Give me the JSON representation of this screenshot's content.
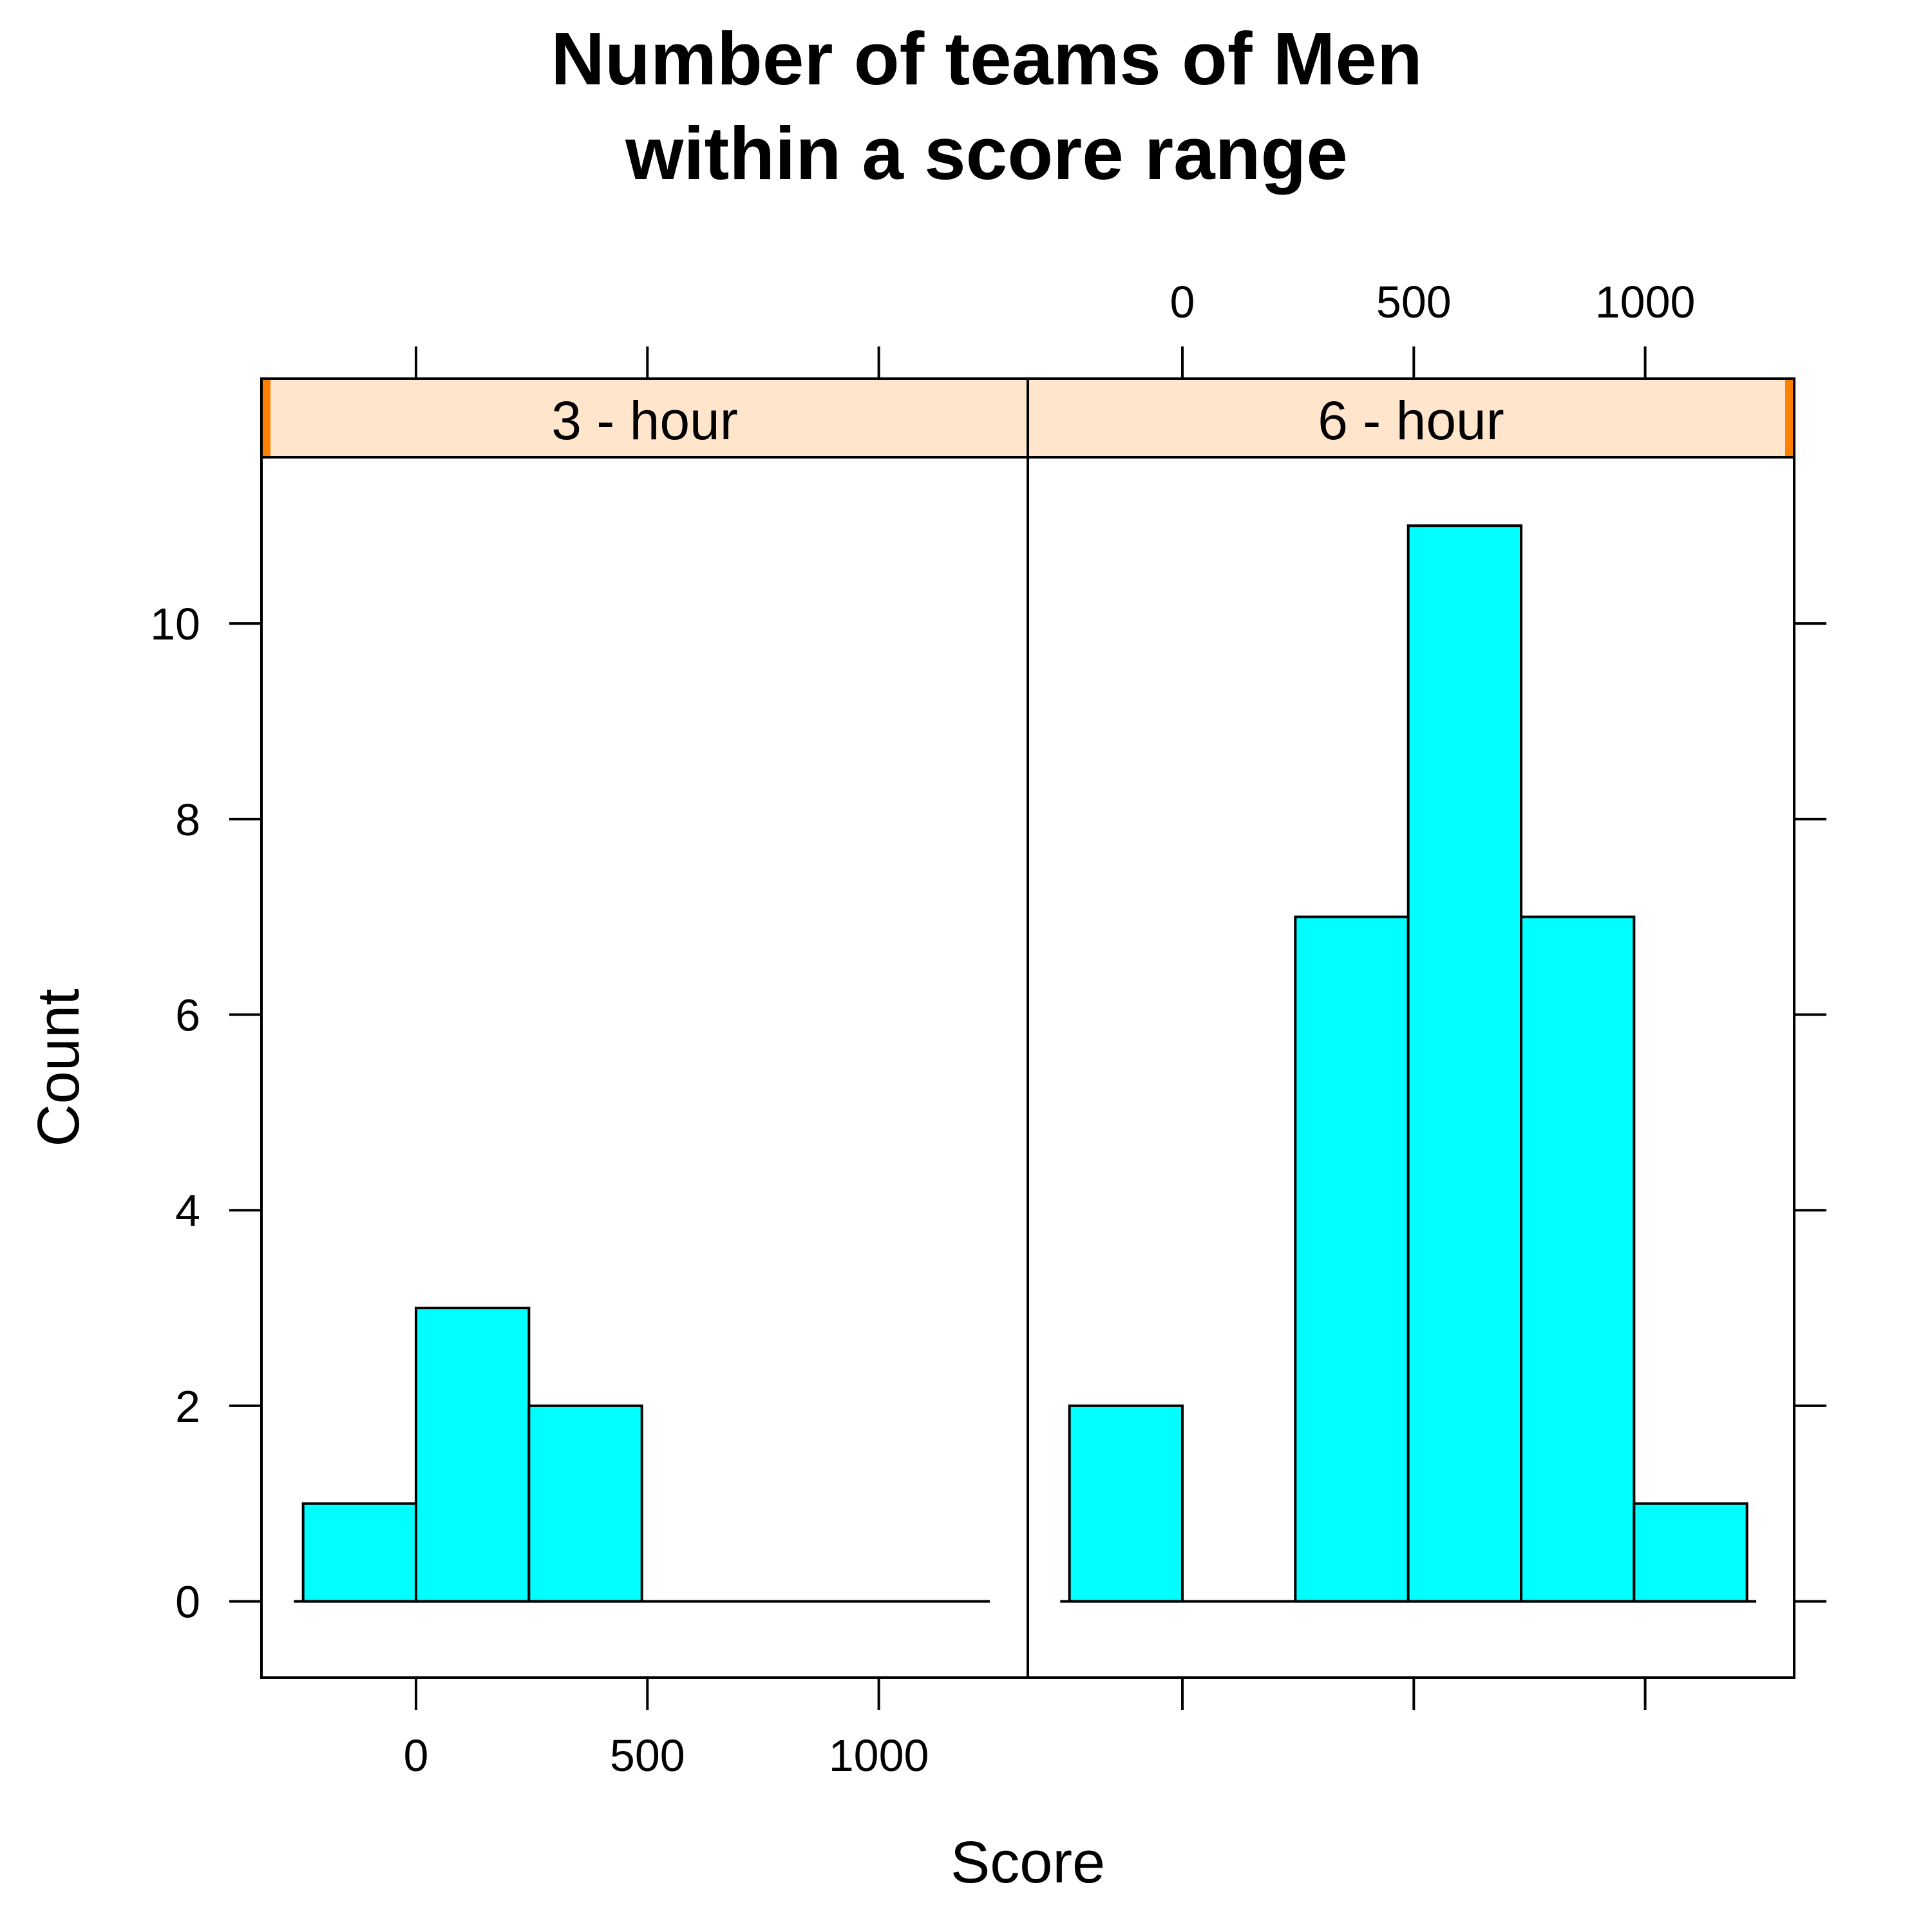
{
  "chart_data": {
    "type": "bar",
    "title": [
      "Number of teams of Men",
      "within a score range"
    ],
    "xlabel": "Score",
    "ylabel": "Count",
    "xlim": [
      -334,
      1322
    ],
    "ylim": [
      -0.78,
      11.7
    ],
    "xticks": [
      0,
      500,
      1000
    ],
    "xtick_labels": [
      "0",
      "500",
      "1000"
    ],
    "yticks": [
      0,
      2,
      4,
      6,
      8,
      10
    ],
    "ytick_labels": [
      "0",
      "2",
      "4",
      "6",
      "8",
      "10"
    ],
    "bin_edges": [
      -244,
      0,
      244,
      488,
      732,
      976,
      1220
    ],
    "panels": [
      {
        "strip": "3 - hour",
        "counts": [
          1,
          3,
          2,
          0,
          0,
          0
        ]
      },
      {
        "strip": "6 - hour",
        "counts": [
          2,
          0,
          7,
          11,
          7,
          1
        ]
      }
    ],
    "grid": false,
    "colors": {
      "bar_fill": "#00ffff",
      "bar_stroke": "#000000",
      "strip_bg": "#ffe5cc",
      "strip_marker": "#ff7f00"
    }
  }
}
